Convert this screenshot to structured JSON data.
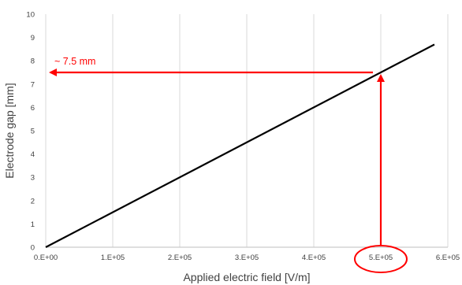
{
  "chart_data": {
    "type": "line",
    "xlabel": "Applied electric field [V/m]",
    "ylabel": "Electrode gap [mm]",
    "xlim": [
      0,
      600000
    ],
    "ylim": [
      0,
      10
    ],
    "x_ticks": [
      0,
      100000,
      200000,
      300000,
      400000,
      500000,
      600000
    ],
    "x_tick_labels": [
      "0.E+00",
      "1.E+05",
      "2.E+05",
      "3.E+05",
      "4.E+05",
      "5.E+05",
      "6.E+05"
    ],
    "y_ticks": [
      0,
      1,
      2,
      3,
      4,
      5,
      6,
      7,
      8,
      9,
      10
    ],
    "y_tick_labels": [
      "0",
      "1",
      "2",
      "3",
      "4",
      "5",
      "6",
      "7",
      "8",
      "9",
      "10"
    ],
    "grid": "vertical",
    "series": [
      {
        "x": [
          0,
          580000
        ],
        "y": [
          0,
          8.7
        ],
        "color": "#000000"
      }
    ],
    "annotations": {
      "label": "~ 7.5 mm",
      "point": {
        "x": 500000,
        "y": 7.5
      },
      "highlighted_tick": "5.E+05",
      "color": "#ff0000"
    }
  }
}
